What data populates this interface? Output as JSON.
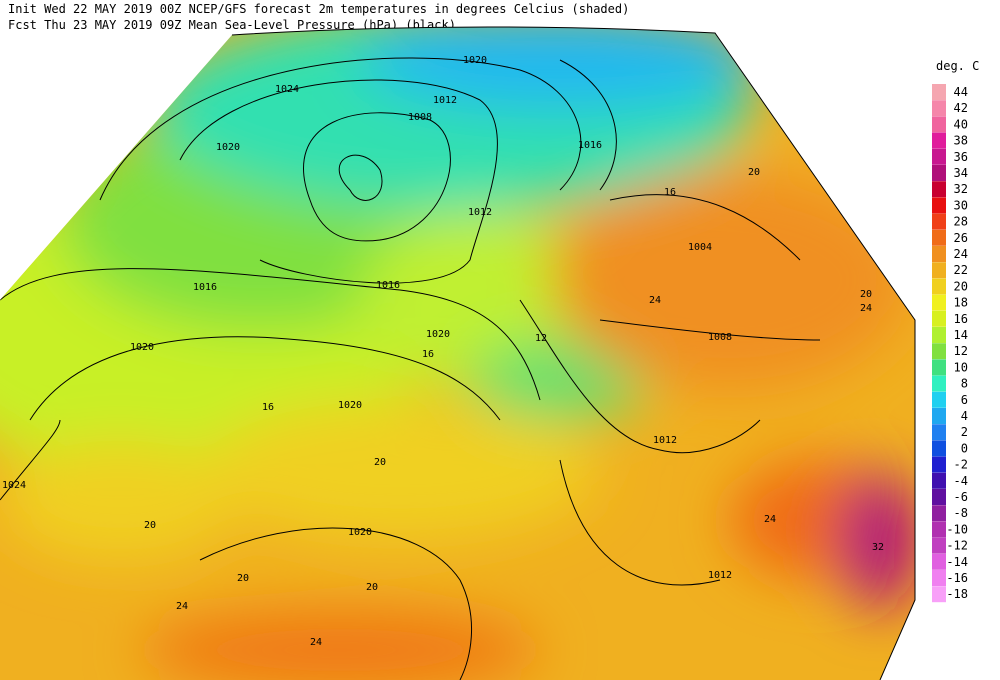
{
  "header": {
    "line1": "Init  Wed 22 MAY 2019 00Z  NCEP/GFS forecast 2m temperatures in degrees Celcius (shaded)",
    "line2": "Fcst Thu 23 MAY 2019 09Z  Mean Sea-Level Pressure (hPa) (black)."
  },
  "legend": {
    "title": "deg. C",
    "items": [
      {
        "value": 44,
        "color": "#f5a6b0"
      },
      {
        "value": 42,
        "color": "#f586aa"
      },
      {
        "value": 40,
        "color": "#f0649e"
      },
      {
        "value": 38,
        "color": "#e01c9c"
      },
      {
        "value": 36,
        "color": "#c81890"
      },
      {
        "value": 34,
        "color": "#b0107a"
      },
      {
        "value": 32,
        "color": "#c80030"
      },
      {
        "value": 30,
        "color": "#e81010"
      },
      {
        "value": 28,
        "color": "#f04018"
      },
      {
        "value": 26,
        "color": "#f06c18"
      },
      {
        "value": 24,
        "color": "#f09020"
      },
      {
        "value": 22,
        "color": "#f0b020"
      },
      {
        "value": 20,
        "color": "#f0d020"
      },
      {
        "value": 18,
        "color": "#f0f020"
      },
      {
        "value": 16,
        "color": "#d8f020"
      },
      {
        "value": 14,
        "color": "#b0f030"
      },
      {
        "value": 12,
        "color": "#80e040"
      },
      {
        "value": 10,
        "color": "#40e080"
      },
      {
        "value": 8,
        "color": "#30f0c0"
      },
      {
        "value": 6,
        "color": "#20d0f0"
      },
      {
        "value": 4,
        "color": "#20a8f0"
      },
      {
        "value": 2,
        "color": "#2080f0"
      },
      {
        "value": 0,
        "color": "#1050e0"
      },
      {
        "value": -2,
        "color": "#2020d0"
      },
      {
        "value": -4,
        "color": "#4010b0"
      },
      {
        "value": -6,
        "color": "#6010a0"
      },
      {
        "value": -8,
        "color": "#9020a0"
      },
      {
        "value": -10,
        "color": "#b030b0"
      },
      {
        "value": -12,
        "color": "#c040c0"
      },
      {
        "value": -14,
        "color": "#e060e0"
      },
      {
        "value": -16,
        "color": "#f080f0"
      },
      {
        "value": -18,
        "color": "#f8a0f8"
      }
    ]
  },
  "isobar_labels": [
    "1020",
    "1024",
    "1012",
    "1008",
    "1020",
    "1016",
    "1012",
    "1004",
    "1016",
    "1016",
    "1020",
    "1020",
    "1008",
    "1020",
    "1012",
    "1024",
    "1020",
    "1012"
  ],
  "temperature_labels": [
    "20",
    "16",
    "24",
    "16",
    "12",
    "16",
    "20",
    "20",
    "24",
    "32",
    "24",
    "20",
    "24",
    "20",
    "20",
    "24"
  ]
}
